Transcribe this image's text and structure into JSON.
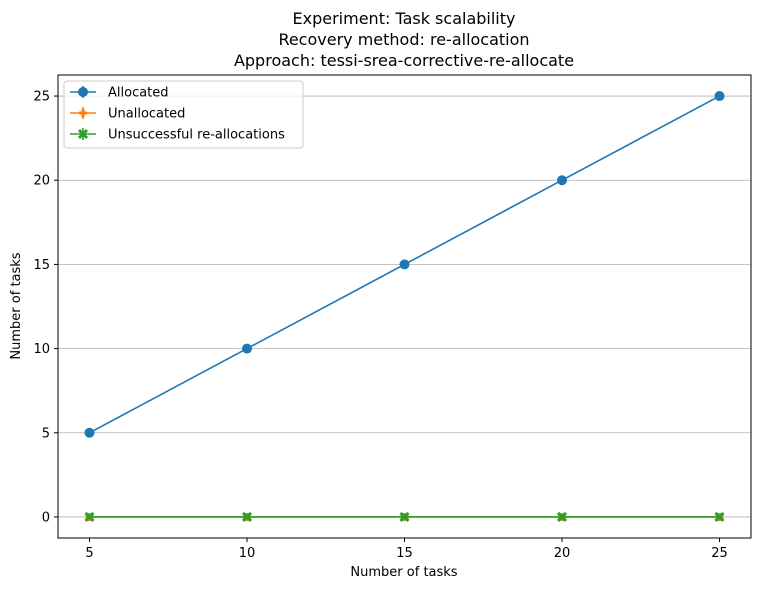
{
  "chart_data": {
    "type": "line",
    "title_lines": [
      "Experiment: Task scalability",
      "Recovery method: re-allocation",
      "Approach: tessi-srea-corrective-re-allocate"
    ],
    "xlabel": "Number of tasks",
    "ylabel": "Number of tasks",
    "x": [
      5,
      10,
      15,
      20,
      25
    ],
    "xlim": [
      4.0,
      26.0
    ],
    "ylim": [
      -1.25,
      26.25
    ],
    "xticks": [
      5,
      10,
      15,
      20,
      25
    ],
    "yticks": [
      0,
      5,
      10,
      15,
      20,
      25
    ],
    "grid": "horizontal",
    "legend_position": "top-left",
    "series": [
      {
        "name": "Allocated",
        "values": [
          5,
          10,
          15,
          20,
          25
        ],
        "color": "#1f77b4",
        "marker": "circle"
      },
      {
        "name": "Unallocated",
        "values": [
          0,
          0,
          0,
          0,
          0
        ],
        "color": "#ff7f0e",
        "marker": "plus"
      },
      {
        "name": "Unsuccessful re-allocations",
        "values": [
          0,
          0,
          0,
          0,
          0
        ],
        "color": "#2ca02c",
        "marker": "x"
      }
    ]
  }
}
